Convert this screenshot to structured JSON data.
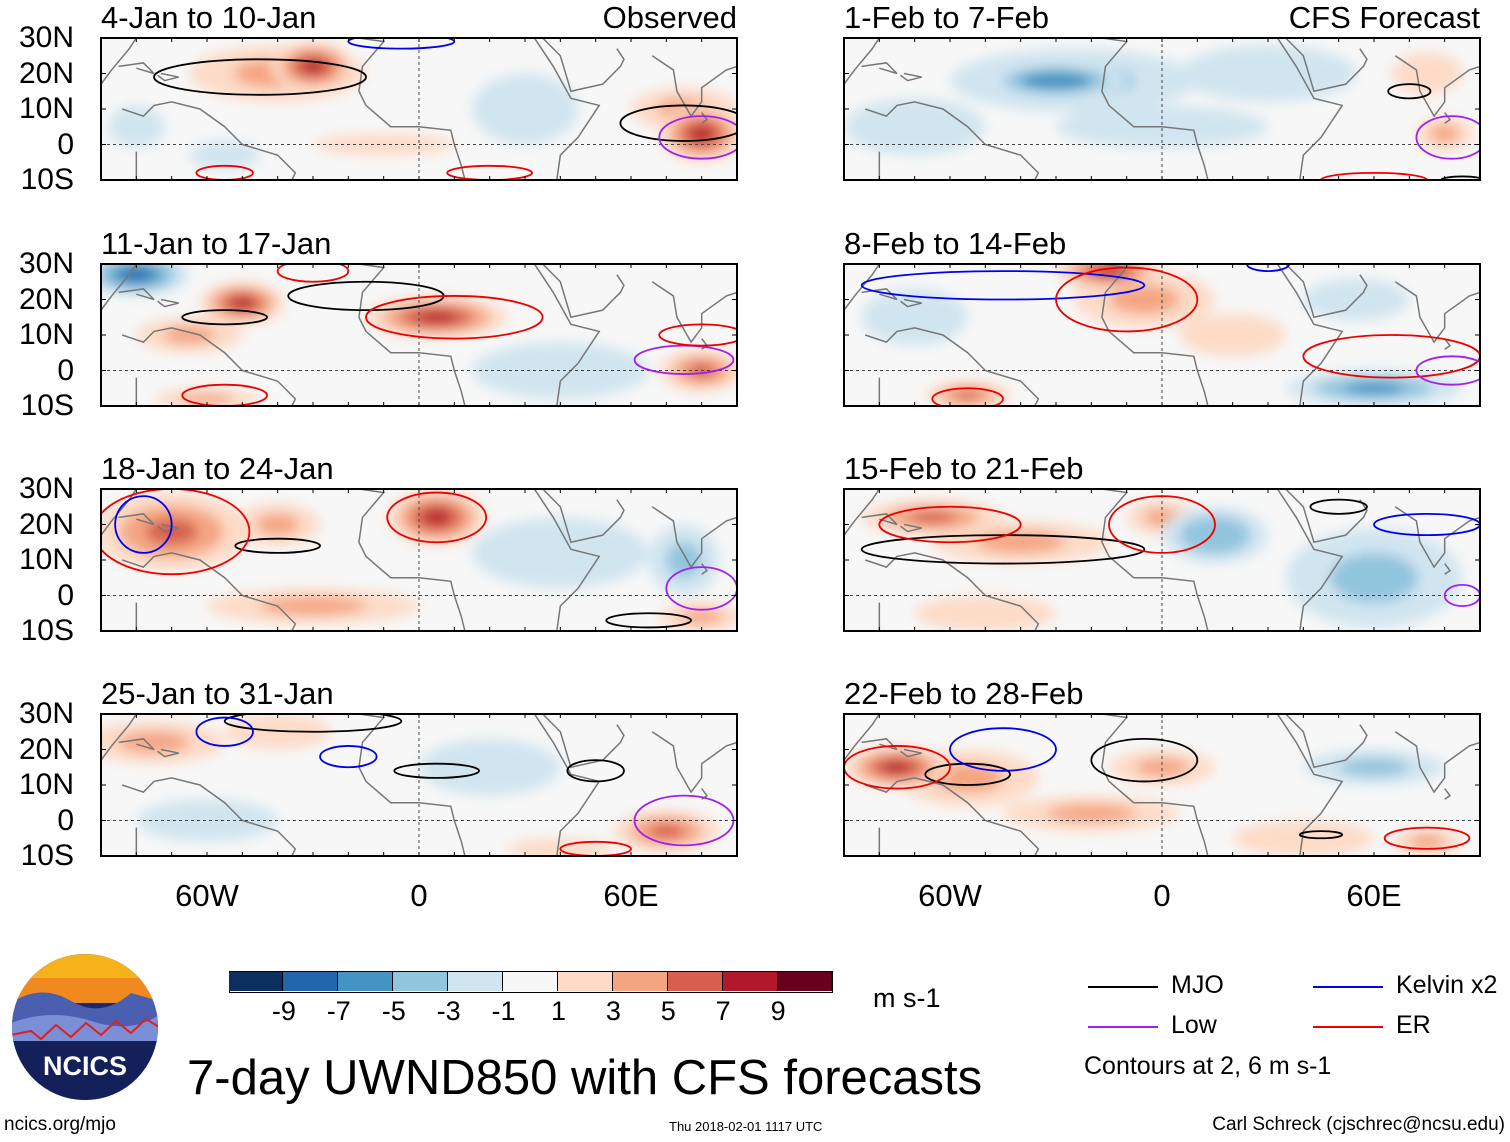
{
  "header": {
    "observed_label": "Observed",
    "forecast_label": "CFS Forecast"
  },
  "lat_labels": [
    "30N",
    "20N",
    "10N",
    "0",
    "10S"
  ],
  "lon_labels": [
    "60W",
    "0",
    "60E"
  ],
  "chart_data": {
    "type": "heatmap",
    "title": "7-day UWND850 with CFS forecasts",
    "units": "m s-1",
    "lon_range": [
      -90,
      90
    ],
    "lat_range": [
      -10,
      30
    ],
    "colorbar": {
      "levels": [
        "-9",
        "-7",
        "-5",
        "-3",
        "-1",
        "1",
        "3",
        "5",
        "7",
        "9"
      ],
      "edges": [
        -9,
        -7,
        -5,
        -3,
        -1,
        1,
        3,
        5,
        7,
        9
      ],
      "colors": [
        "#0b2f5e",
        "#2166ac",
        "#4393c3",
        "#92c5de",
        "#d1e5f0",
        "#f7f7f7",
        "#fddbc7",
        "#f4a582",
        "#d6604d",
        "#b2182b",
        "#67001f"
      ]
    },
    "panels": [
      {
        "title": "4-Jan to 10-Jan",
        "group": "Observed",
        "anomalies": [
          [
            -30,
            22,
            8,
            12,
            7
          ],
          [
            -40,
            20,
            3,
            25,
            8
          ],
          [
            80,
            3,
            7,
            12,
            8
          ],
          [
            75,
            10,
            4,
            15,
            6
          ],
          [
            -55,
            -3,
            -3,
            10,
            4
          ],
          [
            -80,
            5,
            -2,
            8,
            6
          ],
          [
            30,
            10,
            -2,
            15,
            10
          ],
          [
            -10,
            0,
            2,
            20,
            3
          ]
        ],
        "contours": [
          [
            "MJO",
            -45,
            19,
            30,
            5
          ],
          [
            "MJO",
            75,
            6,
            18,
            5
          ],
          [
            "Kelvin",
            -5,
            29,
            15,
            2
          ],
          [
            "Low",
            80,
            2,
            12,
            6
          ],
          [
            "ER",
            20,
            -8,
            12,
            2
          ],
          [
            "ER",
            -55,
            -8,
            8,
            2
          ]
        ]
      },
      {
        "title": "11-Jan to 17-Jan",
        "group": "Observed",
        "anomalies": [
          [
            -80,
            27,
            -8,
            15,
            6
          ],
          [
            -50,
            19,
            7,
            12,
            6
          ],
          [
            5,
            15,
            7,
            20,
            6
          ],
          [
            -65,
            10,
            3,
            15,
            5
          ],
          [
            80,
            0,
            6,
            12,
            6
          ],
          [
            40,
            0,
            -3,
            25,
            8
          ],
          [
            -60,
            -8,
            3,
            15,
            3
          ]
        ],
        "contours": [
          [
            "MJO",
            -15,
            21,
            22,
            4
          ],
          [
            "MJO",
            -55,
            15,
            12,
            2
          ],
          [
            "ER",
            10,
            15,
            25,
            6
          ],
          [
            "ER",
            -30,
            28,
            10,
            3
          ],
          [
            "Low",
            75,
            3,
            14,
            4
          ],
          [
            "ER",
            80,
            10,
            12,
            3
          ],
          [
            "ER",
            -55,
            -7,
            12,
            3
          ]
        ]
      },
      {
        "title": "18-Jan to 24-Jan",
        "group": "Observed",
        "anomalies": [
          [
            -70,
            18,
            6,
            22,
            11
          ],
          [
            5,
            22,
            7,
            14,
            8
          ],
          [
            -40,
            20,
            3,
            12,
            6
          ],
          [
            40,
            12,
            -3,
            25,
            10
          ],
          [
            75,
            10,
            -4,
            10,
            10
          ],
          [
            -30,
            -3,
            3,
            30,
            5
          ],
          [
            80,
            -6,
            4,
            12,
            4
          ]
        ],
        "contours": [
          [
            "MJO",
            -40,
            14,
            12,
            2
          ],
          [
            "ER",
            -70,
            18,
            22,
            12
          ],
          [
            "ER",
            5,
            22,
            14,
            7
          ],
          [
            "Kelvin",
            -78,
            20,
            8,
            8
          ],
          [
            "Low",
            80,
            2,
            10,
            6
          ],
          [
            "MJO",
            65,
            -7,
            12,
            2
          ]
        ]
      },
      {
        "title": "25-Jan to 31-Jan",
        "group": "Observed",
        "anomalies": [
          [
            -75,
            22,
            4,
            20,
            6
          ],
          [
            -40,
            25,
            2,
            15,
            5
          ],
          [
            20,
            15,
            -2,
            20,
            8
          ],
          [
            70,
            -3,
            5,
            15,
            6
          ],
          [
            -60,
            0,
            -2,
            20,
            6
          ],
          [
            40,
            -8,
            2,
            15,
            3
          ]
        ],
        "contours": [
          [
            "MJO",
            -30,
            28,
            25,
            3
          ],
          [
            "Kelvin",
            -55,
            25,
            8,
            4
          ],
          [
            "Kelvin",
            -20,
            18,
            8,
            3
          ],
          [
            "MJO",
            5,
            14,
            12,
            2
          ],
          [
            "MJO",
            50,
            14,
            8,
            3
          ],
          [
            "Low",
            75,
            0,
            14,
            7
          ],
          [
            "ER",
            50,
            -8,
            10,
            2
          ]
        ]
      },
      {
        "title": "1-Feb to 7-Feb",
        "group": "CFS Forecast",
        "anomalies": [
          [
            -30,
            18,
            -7,
            20,
            5
          ],
          [
            -25,
            18,
            -4,
            35,
            9
          ],
          [
            30,
            20,
            -3,
            25,
            8
          ],
          [
            -70,
            5,
            -2,
            20,
            8
          ],
          [
            0,
            5,
            -2,
            30,
            6
          ],
          [
            75,
            20,
            2,
            10,
            6
          ],
          [
            80,
            3,
            4,
            8,
            5
          ]
        ],
        "contours": [
          [
            "MJO",
            70,
            15,
            6,
            2
          ],
          [
            "Low",
            82,
            2,
            10,
            6
          ],
          [
            "ER",
            60,
            -10,
            15,
            2
          ],
          [
            "MJO",
            85,
            -10,
            6,
            1
          ]
        ]
      },
      {
        "title": "8-Feb to 14-Feb",
        "group": "CFS Forecast",
        "anomalies": [
          [
            -15,
            28,
            7,
            15,
            5
          ],
          [
            -5,
            20,
            3,
            20,
            8
          ],
          [
            60,
            -5,
            -6,
            25,
            5
          ],
          [
            55,
            20,
            -3,
            15,
            6
          ],
          [
            -55,
            -7,
            5,
            12,
            4
          ],
          [
            -70,
            15,
            -2,
            15,
            8
          ],
          [
            20,
            10,
            2,
            15,
            6
          ]
        ],
        "contours": [
          [
            "Kelvin",
            -45,
            24,
            40,
            4
          ],
          [
            "ER",
            -10,
            20,
            20,
            9
          ],
          [
            "ER",
            -55,
            -8,
            10,
            3
          ],
          [
            "ER",
            65,
            4,
            25,
            6
          ],
          [
            "Low",
            82,
            0,
            10,
            4
          ],
          [
            "Kelvin",
            30,
            30,
            6,
            2
          ]
        ]
      },
      {
        "title": "15-Feb to 21-Feb",
        "group": "CFS Forecast",
        "anomalies": [
          [
            -65,
            22,
            5,
            20,
            5
          ],
          [
            -40,
            15,
            3,
            25,
            6
          ],
          [
            15,
            17,
            -5,
            15,
            8
          ],
          [
            0,
            22,
            4,
            10,
            5
          ],
          [
            60,
            5,
            -4,
            25,
            14
          ],
          [
            -50,
            -5,
            2,
            20,
            5
          ]
        ],
        "contours": [
          [
            "MJO",
            -45,
            13,
            40,
            4
          ],
          [
            "ER",
            -60,
            20,
            20,
            5
          ],
          [
            "ER",
            0,
            20,
            15,
            8
          ],
          [
            "Kelvin",
            75,
            20,
            15,
            3
          ],
          [
            "Low",
            85,
            0,
            5,
            3
          ],
          [
            "MJO",
            50,
            25,
            8,
            2
          ]
        ]
      },
      {
        "title": "22-Feb to 28-Feb",
        "group": "CFS Forecast",
        "anomalies": [
          [
            -75,
            15,
            7,
            15,
            6
          ],
          [
            -55,
            12,
            4,
            20,
            8
          ],
          [
            0,
            15,
            4,
            15,
            5
          ],
          [
            60,
            15,
            -4,
            20,
            5
          ],
          [
            -20,
            2,
            3,
            25,
            5
          ],
          [
            40,
            -5,
            2,
            20,
            5
          ],
          [
            75,
            -6,
            3,
            10,
            4
          ]
        ],
        "contours": [
          [
            "MJO",
            -55,
            13,
            12,
            3
          ],
          [
            "Kelvin",
            -45,
            20,
            15,
            6
          ],
          [
            "MJO",
            -5,
            17,
            15,
            6
          ],
          [
            "ER",
            -75,
            15,
            15,
            6
          ],
          [
            "MJO",
            45,
            -4,
            6,
            1
          ],
          [
            "ER",
            75,
            -5,
            12,
            3
          ]
        ]
      }
    ]
  },
  "legend": {
    "items": [
      {
        "label": "MJO",
        "color": "#000000"
      },
      {
        "label": "Kelvin x2",
        "color": "#0000ee"
      },
      {
        "label": "Low",
        "color": "#a020f0"
      },
      {
        "label": "ER",
        "color": "#ee0000"
      }
    ],
    "note": "Contours at 2, 6 m s-1"
  },
  "logo": {
    "text": "NCICS"
  },
  "footer": {
    "url": "ncics.org/mjo",
    "timestamp": "Thu 2018-02-01 1117 UTC",
    "author": "Carl Schreck (cjschrec@ncsu.edu)"
  }
}
